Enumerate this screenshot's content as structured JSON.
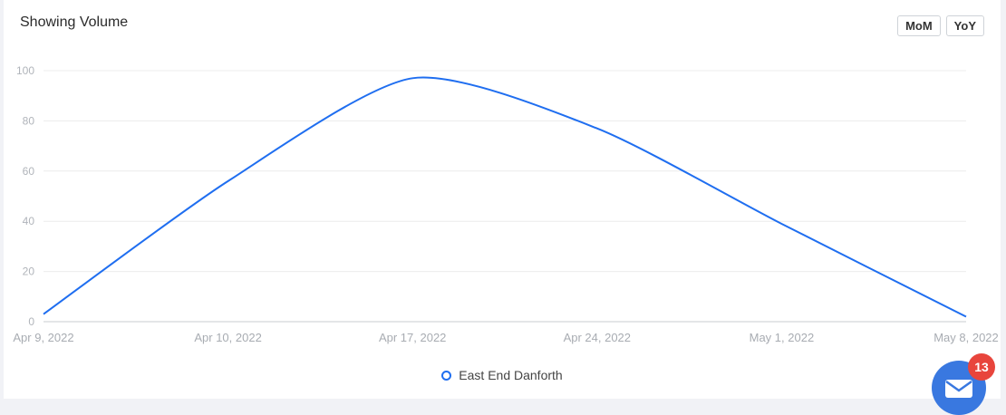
{
  "header": {
    "title": "Showing Volume",
    "mom_label": "MoM",
    "yoy_label": "YoY"
  },
  "chart_data": {
    "type": "line",
    "title": "Showing Volume",
    "xlabel": "",
    "ylabel": "",
    "ylim": [
      0,
      100
    ],
    "yticks": [
      0,
      20,
      40,
      60,
      80,
      100
    ],
    "categories": [
      "Apr 9, 2022",
      "Apr 10, 2022",
      "Apr 17, 2022",
      "Apr 24, 2022",
      "May 1, 2022",
      "May 8, 2022"
    ],
    "series": [
      {
        "name": "East End Danforth",
        "color": "#1f6ef0",
        "values": [
          3,
          56,
          97,
          77,
          39,
          2
        ]
      }
    ],
    "grid": true,
    "legend_position": "bottom-center"
  },
  "chat": {
    "icon": "envelope-icon",
    "badge_count": "13",
    "badge_color": "#e8453c",
    "button_color": "#3978e0"
  }
}
